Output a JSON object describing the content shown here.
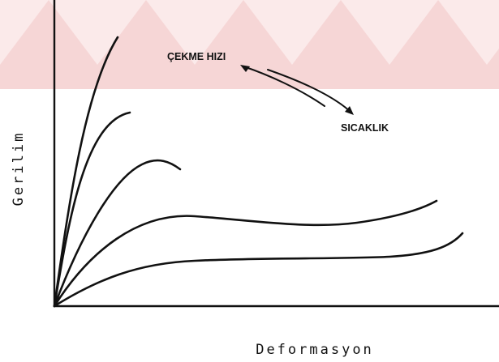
{
  "annotations": {
    "speed": "ÇEKME HIZI",
    "temperature": "SICAKLIK"
  },
  "axes": {
    "y": "Gerilim",
    "x": "Deformasyon"
  }
}
